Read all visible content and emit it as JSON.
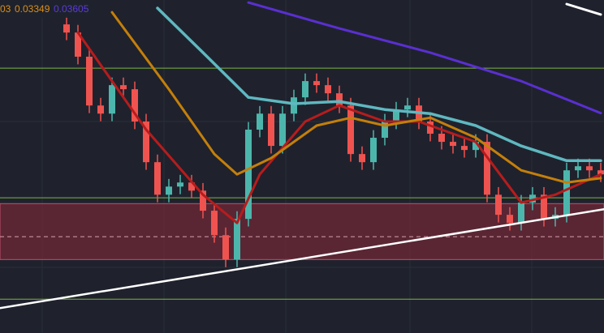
{
  "chart_data": {
    "type": "candlestick",
    "legend": [
      {
        "text": "03",
        "color": "#d98e1c"
      },
      {
        "text": "0.03349",
        "color": "#d98e1c"
      },
      {
        "text": "0.03605",
        "color": "#5b3bd6"
      }
    ],
    "ylim": [
      0.0274,
      0.0405
    ],
    "xlim": [
      -5.857,
      47.286
    ],
    "up_color": "#4db6ac",
    "down_color": "#ef5350",
    "open": [
      0.03954,
      0.03922,
      0.03827,
      0.03635,
      0.03603,
      0.03715,
      0.03699,
      0.03572,
      0.03412,
      0.03284,
      0.03316,
      0.03332,
      0.033,
      0.03221,
      0.03125,
      0.03029,
      0.03189,
      0.0354,
      0.03603,
      0.03476,
      0.03603,
      0.03667,
      0.03731,
      0.03715,
      0.03683,
      0.03635,
      0.03444,
      0.03412,
      0.03508,
      0.03572,
      0.03619,
      0.03635,
      0.03572,
      0.03524,
      0.03492,
      0.03476,
      0.0346,
      0.03492,
      0.03284,
      0.03205,
      0.03173,
      0.03253,
      0.03284,
      0.03189,
      0.03205,
      0.0338,
      0.03396,
      0.0338
    ],
    "high": [
      0.03984,
      0.03952,
      0.03857,
      0.03665,
      0.03745,
      0.03745,
      0.03729,
      0.03602,
      0.03442,
      0.03346,
      0.03362,
      0.03362,
      0.0333,
      0.03251,
      0.03155,
      0.03219,
      0.0357,
      0.03633,
      0.03633,
      0.03633,
      0.03697,
      0.03761,
      0.03761,
      0.03745,
      0.03713,
      0.03665,
      0.03474,
      0.03538,
      0.03602,
      0.03649,
      0.03665,
      0.03665,
      0.03602,
      0.03554,
      0.03522,
      0.03506,
      0.03522,
      0.03522,
      0.03314,
      0.03235,
      0.03283,
      0.03314,
      0.03314,
      0.03235,
      0.0341,
      0.03426,
      0.03426,
      0.0341
    ],
    "low": [
      0.03892,
      0.03797,
      0.03605,
      0.03573,
      0.03573,
      0.03669,
      0.03542,
      0.03382,
      0.03254,
      0.03254,
      0.03286,
      0.0327,
      0.03191,
      0.03095,
      0.02999,
      0.02999,
      0.03159,
      0.0351,
      0.03446,
      0.03446,
      0.03573,
      0.03637,
      0.03685,
      0.03653,
      0.03605,
      0.03414,
      0.03382,
      0.03382,
      0.03478,
      0.03542,
      0.03589,
      0.03542,
      0.03494,
      0.03462,
      0.03446,
      0.0343,
      0.0343,
      0.03254,
      0.03175,
      0.03143,
      0.03143,
      0.03223,
      0.03159,
      0.03159,
      0.03175,
      0.0335,
      0.0335,
      0.03334
    ],
    "close": [
      0.03922,
      0.03827,
      0.03635,
      0.03603,
      0.03715,
      0.03699,
      0.03572,
      0.03412,
      0.03284,
      0.03316,
      0.03332,
      0.033,
      0.03221,
      0.03125,
      0.03029,
      0.03189,
      0.0354,
      0.03603,
      0.03476,
      0.03603,
      0.03667,
      0.03731,
      0.03715,
      0.03683,
      0.03635,
      0.03444,
      0.03412,
      0.03508,
      0.03572,
      0.03619,
      0.03635,
      0.03572,
      0.03524,
      0.03492,
      0.03476,
      0.0346,
      0.03492,
      0.03284,
      0.03205,
      0.03173,
      0.03253,
      0.03284,
      0.03189,
      0.03205,
      0.0338,
      0.03396,
      0.0338,
      0.03364
    ],
    "series": [
      {
        "color": "#b71c1c",
        "width": 3,
        "x": [
          1,
          7,
          12,
          15,
          17,
          21,
          24,
          28,
          31,
          36,
          40,
          43,
          47
        ],
        "values": [
          0.03922,
          0.0354,
          0.03284,
          0.03173,
          0.03364,
          0.03572,
          0.03635,
          0.03572,
          0.03572,
          0.03492,
          0.03253,
          0.03284,
          0.03364
        ]
      },
      {
        "color": "#c47f0a",
        "width": 3,
        "x": [
          4,
          9,
          13,
          15,
          18,
          22,
          25,
          28,
          32,
          36,
          40,
          44,
          47
        ],
        "values": [
          0.04002,
          0.03699,
          0.03444,
          0.03364,
          0.03428,
          0.03556,
          0.03587,
          0.03556,
          0.03587,
          0.03508,
          0.0338,
          0.03332,
          0.03349
        ]
      },
      {
        "color": "#5fb8c0",
        "width": 3.5,
        "x": [
          8,
          12,
          16,
          20,
          24,
          28,
          32,
          36,
          40,
          44,
          47
        ],
        "values": [
          0.04018,
          0.03843,
          0.03667,
          0.03642,
          0.03651,
          0.03619,
          0.03603,
          0.03556,
          0.03476,
          0.03418,
          0.03418
        ]
      },
      {
        "color": "#5a2fd0",
        "width": 3,
        "x": [
          16,
          24,
          32,
          40,
          47
        ],
        "values": [
          0.0404,
          0.03938,
          0.03843,
          0.03731,
          0.03605
        ]
      },
      {
        "color": "#ffffff",
        "width": 3,
        "x": [
          44,
          47
        ],
        "values": [
          0.04034,
          0.03993
        ]
      },
      {
        "color": "#ffffff",
        "width": 2.5,
        "x": [
          -5.857,
          47.286
        ],
        "values": [
          0.02838,
          0.03227
        ]
      }
    ],
    "levels": [
      {
        "value": 0.03782,
        "color": "#7cb342"
      },
      {
        "value": 0.03272,
        "color": "#7cb342"
      },
      {
        "value": 0.02873,
        "color": "#7cb342"
      }
    ],
    "zone": {
      "from": 0.03029,
      "to": 0.03249,
      "mid": 0.03119,
      "color": "#8a2a3a"
    }
  }
}
